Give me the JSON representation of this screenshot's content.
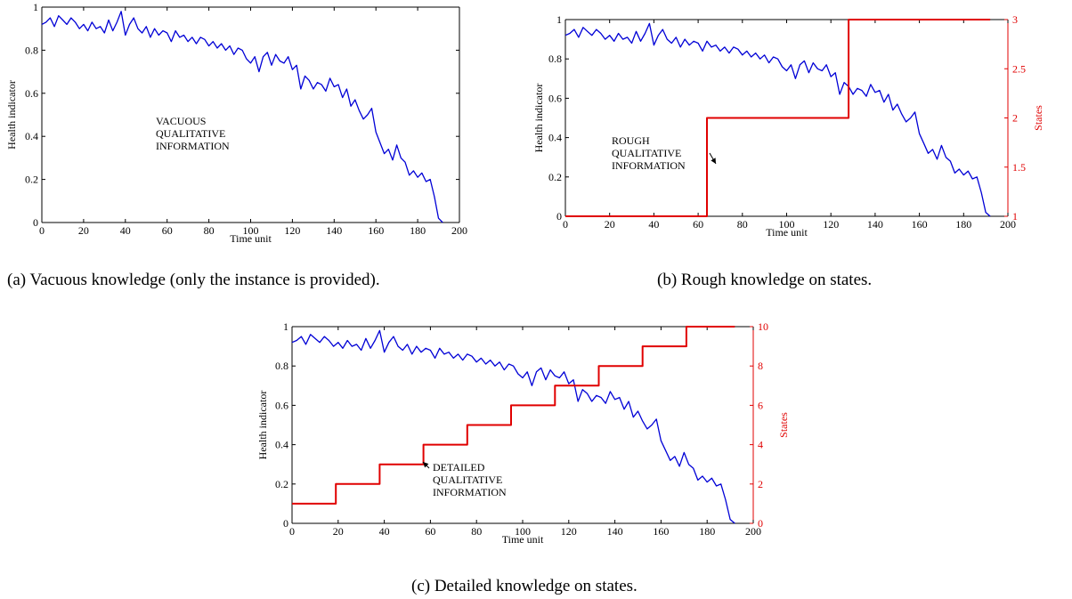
{
  "colors": {
    "health": "#0000d6",
    "states": "#e00000",
    "axis": "#000000"
  },
  "captions": {
    "a": "(a) Vacuous knowledge (only the instance is provided).",
    "b": "(b) Rough knowledge on states.",
    "c": "(c) Detailed knowledge on states."
  },
  "chart_data": [
    {
      "id": "a",
      "type": "line",
      "xlabel": "Time unit",
      "ylabel": "Health indicator",
      "xlim": [
        0,
        200
      ],
      "ylim": [
        0,
        1
      ],
      "xticks": [
        0,
        20,
        40,
        60,
        80,
        100,
        120,
        140,
        160,
        180,
        200
      ],
      "yticks": [
        0,
        0.2,
        0.4,
        0.6,
        0.8,
        1
      ],
      "annotation": [
        "VACUOUS",
        "QUALITATIVE",
        "INFORMATION"
      ],
      "series": [
        {
          "x": [
            0,
            2,
            4,
            6,
            8,
            10,
            12,
            14,
            16,
            18,
            20,
            22,
            24,
            26,
            28,
            30,
            32,
            34,
            36,
            38,
            40,
            42,
            44,
            46,
            48,
            50,
            52,
            54,
            56,
            58,
            60,
            62,
            64,
            66,
            68,
            70,
            72,
            74,
            76,
            78,
            80,
            82,
            84,
            86,
            88,
            90,
            92,
            94,
            96,
            98,
            100,
            102,
            104,
            106,
            108,
            110,
            112,
            114,
            116,
            118,
            120,
            122,
            124,
            126,
            128,
            130,
            132,
            134,
            136,
            138,
            140,
            142,
            144,
            146,
            148,
            150,
            152,
            154,
            156,
            158,
            160,
            162,
            164,
            166,
            168,
            170,
            172,
            174,
            176,
            178,
            180,
            182,
            184,
            186,
            188,
            190,
            192
          ],
          "values": [
            0.92,
            0.93,
            0.95,
            0.91,
            0.96,
            0.94,
            0.92,
            0.95,
            0.93,
            0.9,
            0.92,
            0.89,
            0.93,
            0.9,
            0.91,
            0.88,
            0.94,
            0.89,
            0.93,
            0.98,
            0.87,
            0.92,
            0.95,
            0.9,
            0.88,
            0.91,
            0.86,
            0.9,
            0.87,
            0.89,
            0.88,
            0.84,
            0.89,
            0.86,
            0.87,
            0.84,
            0.86,
            0.83,
            0.86,
            0.85,
            0.82,
            0.84,
            0.81,
            0.83,
            0.8,
            0.82,
            0.78,
            0.81,
            0.8,
            0.76,
            0.74,
            0.77,
            0.7,
            0.77,
            0.79,
            0.73,
            0.78,
            0.75,
            0.74,
            0.77,
            0.71,
            0.73,
            0.62,
            0.68,
            0.66,
            0.62,
            0.65,
            0.64,
            0.61,
            0.67,
            0.63,
            0.64,
            0.58,
            0.62,
            0.54,
            0.57,
            0.52,
            0.48,
            0.5,
            0.53,
            0.42,
            0.37,
            0.32,
            0.34,
            0.29,
            0.36,
            0.3,
            0.28,
            0.22,
            0.24,
            0.21,
            0.23,
            0.19,
            0.2,
            0.12,
            0.02,
            0.0
          ]
        }
      ]
    },
    {
      "id": "b",
      "type": "line",
      "xlabel": "Time unit",
      "ylabel": "Health indicator",
      "ylabel_right": "States",
      "xlim": [
        0,
        200
      ],
      "ylim": [
        0,
        1
      ],
      "ylim_right": [
        1,
        3
      ],
      "xticks": [
        0,
        20,
        40,
        60,
        80,
        100,
        120,
        140,
        160,
        180,
        200
      ],
      "yticks": [
        0,
        0.2,
        0.4,
        0.6,
        0.8,
        1
      ],
      "yticks_right": [
        "1",
        "1.5",
        "2",
        "2.5",
        "3"
      ],
      "annotation": [
        "ROUGH",
        "QUALITATIVE",
        "INFORMATION"
      ],
      "series": [
        {
          "x": [
            0,
            2,
            4,
            6,
            8,
            10,
            12,
            14,
            16,
            18,
            20,
            22,
            24,
            26,
            28,
            30,
            32,
            34,
            36,
            38,
            40,
            42,
            44,
            46,
            48,
            50,
            52,
            54,
            56,
            58,
            60,
            62,
            64,
            66,
            68,
            70,
            72,
            74,
            76,
            78,
            80,
            82,
            84,
            86,
            88,
            90,
            92,
            94,
            96,
            98,
            100,
            102,
            104,
            106,
            108,
            110,
            112,
            114,
            116,
            118,
            120,
            122,
            124,
            126,
            128,
            130,
            132,
            134,
            136,
            138,
            140,
            142,
            144,
            146,
            148,
            150,
            152,
            154,
            156,
            158,
            160,
            162,
            164,
            166,
            168,
            170,
            172,
            174,
            176,
            178,
            180,
            182,
            184,
            186,
            188,
            190,
            192
          ],
          "values": [
            0.92,
            0.93,
            0.95,
            0.91,
            0.96,
            0.94,
            0.92,
            0.95,
            0.93,
            0.9,
            0.92,
            0.89,
            0.93,
            0.9,
            0.91,
            0.88,
            0.94,
            0.89,
            0.93,
            0.98,
            0.87,
            0.92,
            0.95,
            0.9,
            0.88,
            0.91,
            0.86,
            0.9,
            0.87,
            0.89,
            0.88,
            0.84,
            0.89,
            0.86,
            0.87,
            0.84,
            0.86,
            0.83,
            0.86,
            0.85,
            0.82,
            0.84,
            0.81,
            0.83,
            0.8,
            0.82,
            0.78,
            0.81,
            0.8,
            0.76,
            0.74,
            0.77,
            0.7,
            0.77,
            0.79,
            0.73,
            0.78,
            0.75,
            0.74,
            0.77,
            0.71,
            0.73,
            0.62,
            0.68,
            0.66,
            0.62,
            0.65,
            0.64,
            0.61,
            0.67,
            0.63,
            0.64,
            0.58,
            0.62,
            0.54,
            0.57,
            0.52,
            0.48,
            0.5,
            0.53,
            0.42,
            0.37,
            0.32,
            0.34,
            0.29,
            0.36,
            0.3,
            0.28,
            0.22,
            0.24,
            0.21,
            0.23,
            0.19,
            0.2,
            0.12,
            0.02,
            0.0
          ]
        },
        {
          "axis": "right",
          "x": [
            0,
            64,
            64,
            128,
            128,
            192
          ],
          "values": [
            1,
            1,
            2,
            2,
            3,
            3
          ]
        }
      ]
    },
    {
      "id": "c",
      "type": "line",
      "xlabel": "Time unit",
      "ylabel": "Health indicator",
      "ylabel_right": "States",
      "xlim": [
        0,
        200
      ],
      "ylim": [
        0,
        1
      ],
      "ylim_right": [
        0,
        10
      ],
      "xticks": [
        0,
        20,
        40,
        60,
        80,
        100,
        120,
        140,
        160,
        180,
        200
      ],
      "yticks": [
        0,
        0.2,
        0.4,
        0.6,
        0.8,
        1
      ],
      "yticks_right": [
        "0",
        "2",
        "4",
        "6",
        "8",
        "10"
      ],
      "annotation": [
        "DETAILED",
        "QUALITATIVE",
        "INFORMATION"
      ],
      "series": [
        {
          "x": [
            0,
            2,
            4,
            6,
            8,
            10,
            12,
            14,
            16,
            18,
            20,
            22,
            24,
            26,
            28,
            30,
            32,
            34,
            36,
            38,
            40,
            42,
            44,
            46,
            48,
            50,
            52,
            54,
            56,
            58,
            60,
            62,
            64,
            66,
            68,
            70,
            72,
            74,
            76,
            78,
            80,
            82,
            84,
            86,
            88,
            90,
            92,
            94,
            96,
            98,
            100,
            102,
            104,
            106,
            108,
            110,
            112,
            114,
            116,
            118,
            120,
            122,
            124,
            126,
            128,
            130,
            132,
            134,
            136,
            138,
            140,
            142,
            144,
            146,
            148,
            150,
            152,
            154,
            156,
            158,
            160,
            162,
            164,
            166,
            168,
            170,
            172,
            174,
            176,
            178,
            180,
            182,
            184,
            186,
            188,
            190,
            192
          ],
          "values": [
            0.92,
            0.93,
            0.95,
            0.91,
            0.96,
            0.94,
            0.92,
            0.95,
            0.93,
            0.9,
            0.92,
            0.89,
            0.93,
            0.9,
            0.91,
            0.88,
            0.94,
            0.89,
            0.93,
            0.98,
            0.87,
            0.92,
            0.95,
            0.9,
            0.88,
            0.91,
            0.86,
            0.9,
            0.87,
            0.89,
            0.88,
            0.84,
            0.89,
            0.86,
            0.87,
            0.84,
            0.86,
            0.83,
            0.86,
            0.85,
            0.82,
            0.84,
            0.81,
            0.83,
            0.8,
            0.82,
            0.78,
            0.81,
            0.8,
            0.76,
            0.74,
            0.77,
            0.7,
            0.77,
            0.79,
            0.73,
            0.78,
            0.75,
            0.74,
            0.77,
            0.71,
            0.73,
            0.62,
            0.68,
            0.66,
            0.62,
            0.65,
            0.64,
            0.61,
            0.67,
            0.63,
            0.64,
            0.58,
            0.62,
            0.54,
            0.57,
            0.52,
            0.48,
            0.5,
            0.53,
            0.42,
            0.37,
            0.32,
            0.34,
            0.29,
            0.36,
            0.3,
            0.28,
            0.22,
            0.24,
            0.21,
            0.23,
            0.19,
            0.2,
            0.12,
            0.02,
            0.0
          ]
        },
        {
          "axis": "right",
          "x": [
            0,
            19,
            19,
            38,
            38,
            57,
            57,
            76,
            76,
            95,
            95,
            114,
            114,
            133,
            133,
            152,
            152,
            171,
            171,
            192
          ],
          "values": [
            1,
            1,
            2,
            2,
            3,
            3,
            4,
            4,
            5,
            5,
            6,
            6,
            7,
            7,
            8,
            8,
            9,
            9,
            10,
            10
          ]
        }
      ]
    }
  ]
}
